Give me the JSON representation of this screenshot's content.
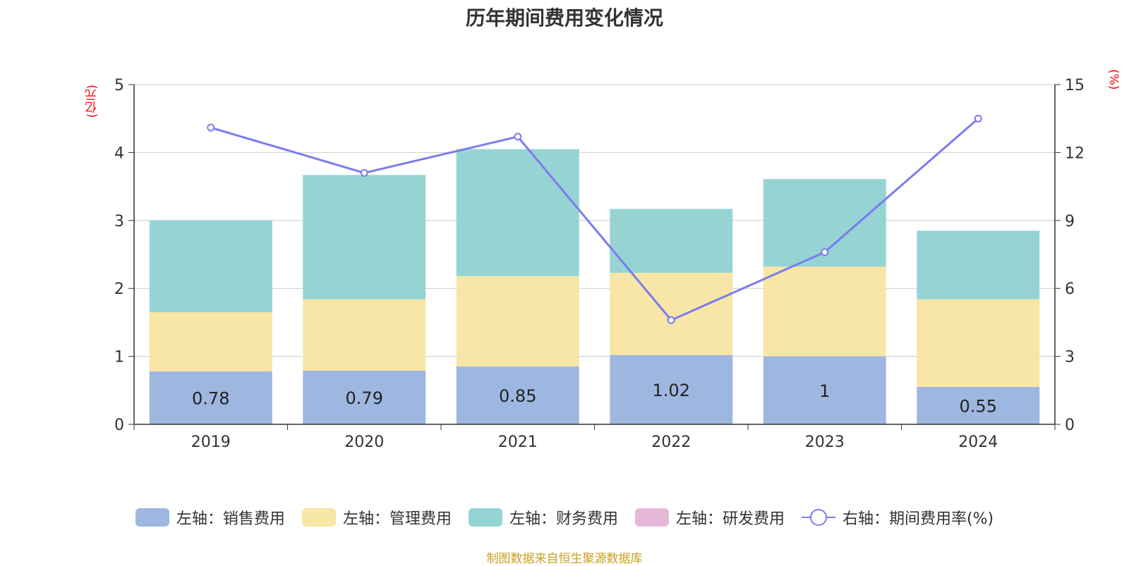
{
  "chart_data": {
    "type": "bar",
    "title": "历年期间费用变化情况",
    "categories": [
      "2019",
      "2020",
      "2021",
      "2022",
      "2023",
      "2024"
    ],
    "series": [
      {
        "name": "左轴：销售费用",
        "axis": "left",
        "values": [
          0.78,
          0.79,
          0.85,
          1.02,
          1.0,
          0.55
        ],
        "labels": [
          "0.78",
          "0.79",
          "0.85",
          "1.02",
          "1",
          "0.55"
        ],
        "color": "#9db7e0"
      },
      {
        "name": "左轴：管理费用",
        "axis": "left",
        "values": [
          0.87,
          1.05,
          1.33,
          1.21,
          1.32,
          1.29
        ],
        "color": "#f7e6a6"
      },
      {
        "name": "左轴：财务费用",
        "axis": "left",
        "values": [
          1.35,
          1.83,
          1.87,
          0.94,
          1.29,
          1.01
        ],
        "color": "#96d4d4"
      },
      {
        "name": "左轴：研发费用",
        "axis": "left",
        "values": [
          0,
          0,
          0,
          0,
          0,
          0
        ],
        "color": "#e6b8d8"
      },
      {
        "name": "右轴：期间费用率(%)",
        "axis": "right",
        "type": "line",
        "values": [
          13.1,
          11.1,
          12.7,
          4.6,
          7.6,
          13.5
        ],
        "color": "#7b7bef"
      }
    ],
    "y_left": {
      "unit": "(亿元)",
      "ylim": [
        0,
        5
      ],
      "ticks": [
        "0",
        "1",
        "2",
        "3",
        "4",
        "5"
      ]
    },
    "y_right": {
      "unit": "(%)",
      "ylim": [
        0,
        15
      ],
      "ticks": [
        "0",
        "3",
        "6",
        "9",
        "12",
        "15"
      ]
    },
    "grid": true,
    "legend_position": "bottom"
  },
  "source": "制图数据来自恒生聚源数据库"
}
